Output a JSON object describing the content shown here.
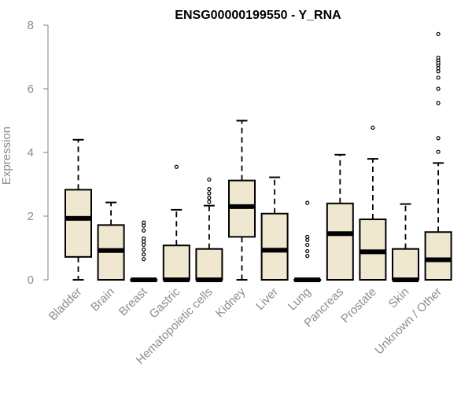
{
  "chart_data": {
    "type": "boxplot",
    "title": "ENSG00000199550 - Y_RNA",
    "ylabel": "Expression",
    "ylim": [
      0,
      8
    ],
    "yticks": [
      0,
      2,
      4,
      6,
      8
    ],
    "box_fill": "#efe7cf",
    "box_stroke": "#000000",
    "axis_color": "#808080",
    "categories": [
      "Bladder",
      "Brain",
      "Breast",
      "Gastric",
      "Hematopoietic cells",
      "Kidney",
      "Liver",
      "Lung",
      "Pancreas",
      "Prostate",
      "Skin",
      "Unknown / Other"
    ],
    "boxes": [
      {
        "category": "Bladder",
        "whisker_low": 0,
        "q1": 0.72,
        "median": 1.93,
        "q3": 2.83,
        "whisker_high": 4.4,
        "outliers": []
      },
      {
        "category": "Brain",
        "whisker_low": 0,
        "q1": 0,
        "median": 0.92,
        "q3": 1.72,
        "whisker_high": 2.43,
        "outliers": []
      },
      {
        "category": "Breast",
        "whisker_low": 0,
        "q1": 0,
        "median": 0,
        "q3": 0,
        "whisker_high": 0,
        "outliers": [
          0.65,
          0.8,
          0.95,
          1.1,
          1.2,
          1.3,
          1.55,
          1.7,
          1.8
        ]
      },
      {
        "category": "Gastric",
        "whisker_low": 0,
        "q1": 0,
        "median": 0,
        "q3": 1.08,
        "whisker_high": 2.2,
        "outliers": [
          3.55
        ]
      },
      {
        "category": "Hematopoietic cells",
        "whisker_low": 0,
        "q1": 0,
        "median": 0,
        "q3": 0.97,
        "whisker_high": 2.33,
        "outliers": [
          2.45,
          2.58,
          2.72,
          2.85,
          3.15
        ]
      },
      {
        "category": "Kidney",
        "whisker_low": 0,
        "q1": 1.35,
        "median": 2.3,
        "q3": 3.12,
        "whisker_high": 5.0,
        "outliers": []
      },
      {
        "category": "Liver",
        "whisker_low": 0,
        "q1": 0,
        "median": 0.93,
        "q3": 2.08,
        "whisker_high": 3.22,
        "outliers": []
      },
      {
        "category": "Lung",
        "whisker_low": 0,
        "q1": 0,
        "median": 0,
        "q3": 0,
        "whisker_high": 0,
        "outliers": [
          0.75,
          0.9,
          1.1,
          1.25,
          1.35,
          2.42
        ]
      },
      {
        "category": "Pancreas",
        "whisker_low": 0,
        "q1": 0,
        "median": 1.45,
        "q3": 2.4,
        "whisker_high": 3.93,
        "outliers": []
      },
      {
        "category": "Prostate",
        "whisker_low": 0,
        "q1": 0,
        "median": 0.88,
        "q3": 1.9,
        "whisker_high": 3.8,
        "outliers": [
          4.78
        ]
      },
      {
        "category": "Skin",
        "whisker_low": 0,
        "q1": 0,
        "median": 0,
        "q3": 0.97,
        "whisker_high": 2.38,
        "outliers": []
      },
      {
        "category": "Unknown / Other",
        "whisker_low": 0,
        "q1": 0,
        "median": 0.63,
        "q3": 1.5,
        "whisker_high": 3.67,
        "outliers": [
          4.02,
          4.45,
          5.55,
          6.0,
          6.35,
          6.55,
          6.65,
          6.75,
          6.82,
          6.9,
          6.98,
          7.72
        ]
      }
    ]
  }
}
